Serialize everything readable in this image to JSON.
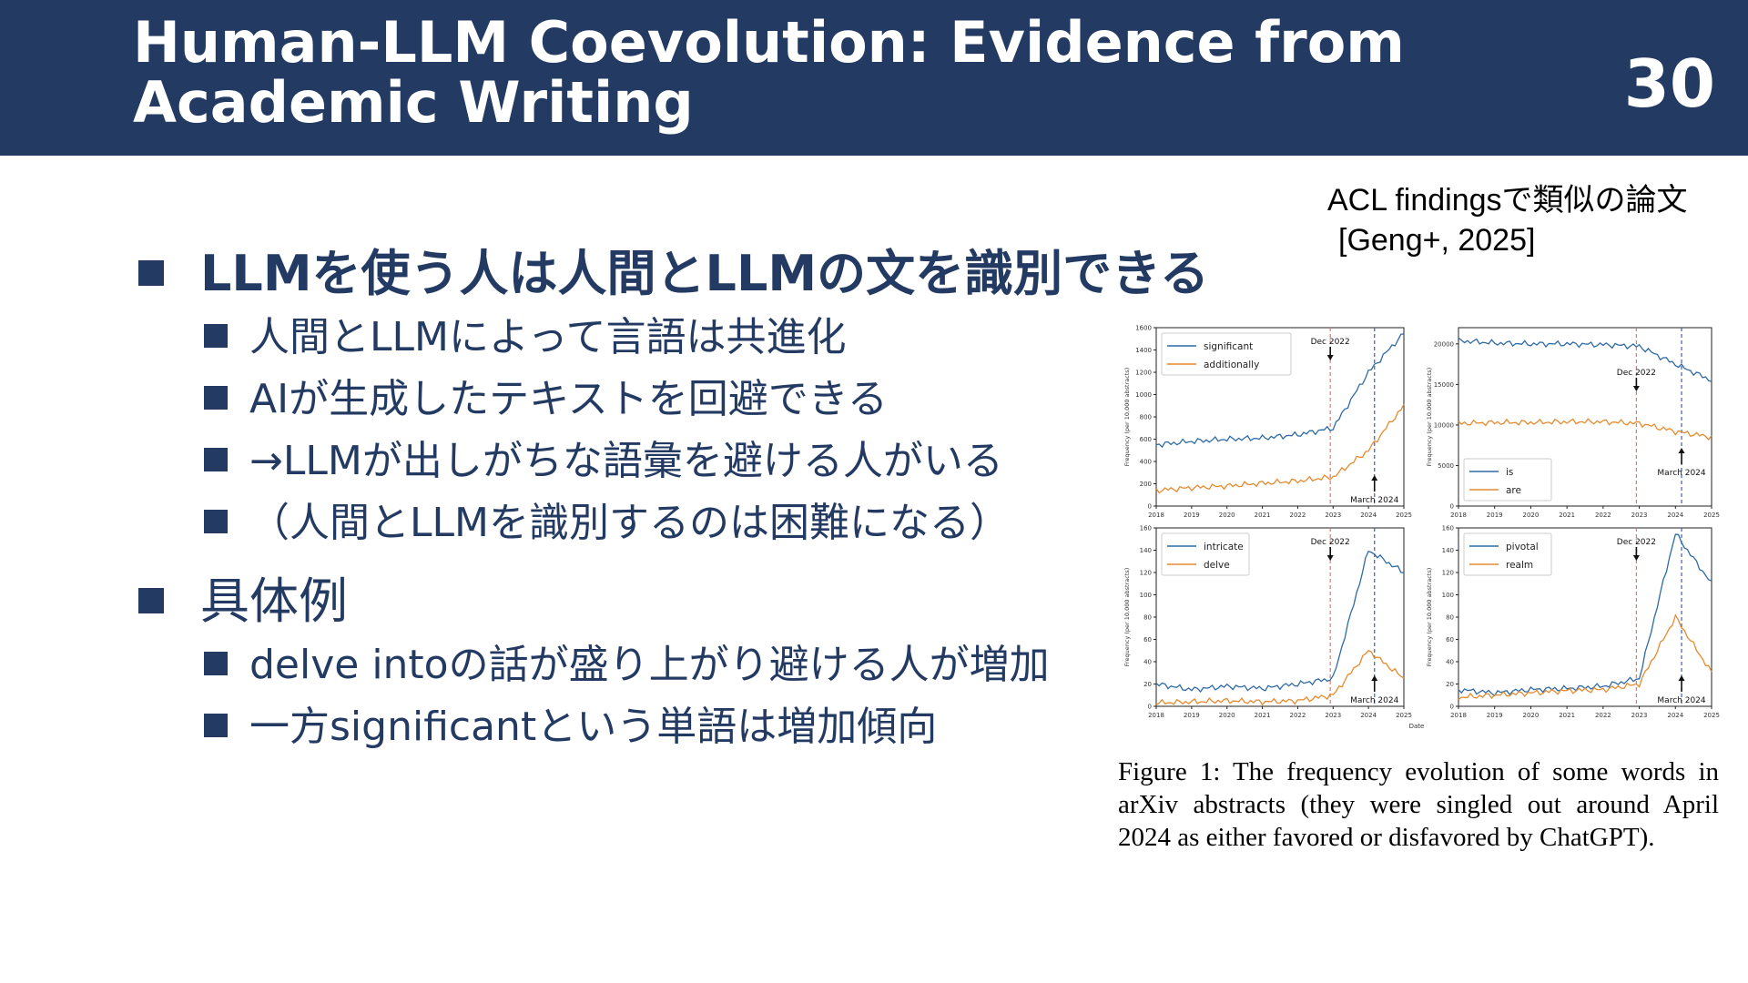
{
  "slide": {
    "title": "Human-LLM Coevolution: Evidence from Academic Writing",
    "page_number": "30",
    "header_color": "#233a63",
    "text_color": "#233a63"
  },
  "reference": {
    "line1": "ACL findingsで類似の論文",
    "line2": "[Geng+, 2025]"
  },
  "bullets": [
    {
      "text": "LLMを使う人は人間とLLMの文を識別できる",
      "children": [
        "人間とLLMによって言語は共進化",
        "AIが生成したテキストを回避できる",
        "→LLMが出しがちな語彙を避ける人がいる",
        "（人間とLLMを識別するのは困難になる）"
      ]
    },
    {
      "text": "具体例",
      "children": [
        "delve intoの話が盛り上がり避ける人が増加",
        "一方significantという単語は増加傾向"
      ]
    }
  ],
  "figure_caption": "Figure 1: The frequency evolution of some words in arXiv abstracts (they were singled out around April 2024 as either favored or disfavored by ChatGPT).",
  "chart_data": [
    {
      "type": "line",
      "x": [
        2018,
        2019,
        2020,
        2021,
        2022,
        2023,
        2024,
        2025
      ],
      "xlim": [
        2018,
        2025
      ],
      "ylim": [
        0,
        1600
      ],
      "yticks": [
        0,
        200,
        400,
        600,
        800,
        1000,
        1200,
        1400,
        1600
      ],
      "ylabel": "Frequency (per 10,000 abstracts)",
      "legend": "top-left",
      "annotations": [
        {
          "text": "Dec 2022",
          "x": 2022.92,
          "arrow": "down"
        },
        {
          "text": "March 2024",
          "x": 2024.17,
          "arrow": "up"
        }
      ],
      "vlines": [
        {
          "x": 2022.92,
          "color": "#e8756a"
        },
        {
          "x": 2024.17,
          "color": "#3a5dbf"
        }
      ],
      "series": [
        {
          "name": "significant",
          "color": "#2f6aa6",
          "values": [
            550,
            580,
            600,
            610,
            640,
            700,
            1200,
            1550
          ]
        },
        {
          "name": "additionally",
          "color": "#e68a2e",
          "values": [
            140,
            165,
            180,
            205,
            225,
            260,
            500,
            900
          ]
        }
      ]
    },
    {
      "type": "line",
      "x": [
        2018,
        2019,
        2020,
        2021,
        2022,
        2023,
        2024,
        2025
      ],
      "xlim": [
        2018,
        2025
      ],
      "ylim": [
        0,
        22000
      ],
      "yticks": [
        0,
        5000,
        10000,
        15000,
        20000
      ],
      "ylabel": "Frequency (per 10,000 abstracts)",
      "legend": "bottom-left",
      "annotations": [
        {
          "text": "Dec 2022",
          "x": 2022.92,
          "arrow": "down"
        },
        {
          "text": "March 2024",
          "x": 2024.17,
          "arrow": "up"
        }
      ],
      "vlines": [
        {
          "x": 2022.92,
          "color": "#e8756a"
        },
        {
          "x": 2024.17,
          "color": "#3a5dbf"
        }
      ],
      "series": [
        {
          "name": "is",
          "color": "#2f6aa6",
          "values": [
            20400,
            20100,
            20000,
            20000,
            19900,
            19700,
            17500,
            15500
          ]
        },
        {
          "name": "are",
          "color": "#e68a2e",
          "values": [
            10200,
            10300,
            10300,
            10400,
            10400,
            10200,
            9200,
            8500
          ]
        }
      ]
    },
    {
      "type": "line",
      "x": [
        2018,
        2019,
        2020,
        2021,
        2022,
        2023,
        2024,
        2025
      ],
      "xlim": [
        2018,
        2025
      ],
      "ylim": [
        0,
        160
      ],
      "yticks": [
        0,
        20,
        40,
        60,
        80,
        100,
        120,
        140,
        160
      ],
      "ylabel": "Frequency (per 10,000 abstracts)",
      "xlabel": "Date",
      "legend": "top-left",
      "annotations": [
        {
          "text": "Dec 2022",
          "x": 2022.92,
          "arrow": "down"
        },
        {
          "text": "March 2024",
          "x": 2024.17,
          "arrow": "up"
        }
      ],
      "vlines": [
        {
          "x": 2022.92,
          "color": "#e8756a"
        },
        {
          "x": 2024.17,
          "color": "#3a5dbf"
        }
      ],
      "series": [
        {
          "name": "intricate",
          "color": "#2f6aa6",
          "values": [
            20,
            15,
            18,
            16,
            20,
            25,
            140,
            120
          ]
        },
        {
          "name": "delve",
          "color": "#e68a2e",
          "values": [
            3,
            4,
            5,
            4,
            5,
            10,
            50,
            25
          ]
        }
      ]
    },
    {
      "type": "line",
      "x": [
        2018,
        2019,
        2020,
        2021,
        2022,
        2023,
        2024,
        2025
      ],
      "xlim": [
        2018,
        2025
      ],
      "ylim": [
        0,
        160
      ],
      "yticks": [
        0,
        20,
        40,
        60,
        80,
        100,
        120,
        140,
        160
      ],
      "ylabel": "Frequency (per 10,000 abstracts)",
      "legend": "top-left",
      "annotations": [
        {
          "text": "Dec 2022",
          "x": 2022.92,
          "arrow": "down"
        },
        {
          "text": "March 2024",
          "x": 2024.17,
          "arrow": "up"
        }
      ],
      "vlines": [
        {
          "x": 2022.92,
          "color": "#e8756a"
        },
        {
          "x": 2024.17,
          "color": "#3a5dbf"
        }
      ],
      "series": [
        {
          "name": "pivotal",
          "color": "#2f6aa6",
          "values": [
            15,
            12,
            15,
            16,
            18,
            25,
            155,
            110
          ]
        },
        {
          "name": "realm",
          "color": "#e68a2e",
          "values": [
            8,
            10,
            12,
            14,
            15,
            20,
            80,
            30
          ]
        }
      ]
    }
  ]
}
